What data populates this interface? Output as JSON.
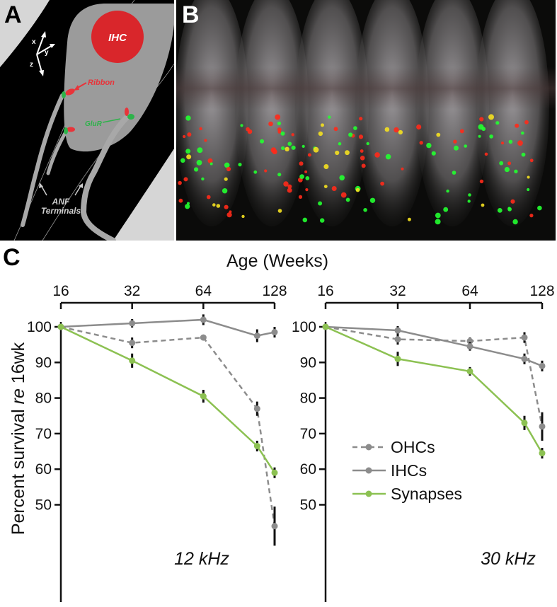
{
  "panel_a": {
    "letter": "A",
    "labels": {
      "ihc": "IHC",
      "ribbon": "Ribbon",
      "glur": "GluR",
      "anf_line1": "ANF",
      "anf_line2": "Terminals"
    },
    "axes": {
      "x": "x",
      "y": "y",
      "z": "z"
    },
    "colors": {
      "ihc": "#d9262b",
      "ribbon": "#e8343a",
      "glur": "#2db34a",
      "tissue": "#000000",
      "cell": "#9b9b9b"
    }
  },
  "panel_b": {
    "letter": "B",
    "colors": {
      "ribbon": "#ff2a1a",
      "glur": "#22ff30",
      "overlap": "#f4e020"
    }
  },
  "panel_c": {
    "letter": "C",
    "top_axis_title": "Age (Weeks)",
    "ylabel_prefix": "Percent survival ",
    "ylabel_italic": "re",
    "ylabel_suffix": " 16wk",
    "legend": [
      "OHCs",
      "IHCs",
      "Synapses"
    ]
  },
  "chart_data": [
    {
      "type": "line",
      "title": "12 kHz",
      "x_label": "Age (Weeks)",
      "x_ticks": [
        16,
        32,
        64,
        128
      ],
      "x_scale": "log2",
      "y_ticks": [
        50,
        60,
        70,
        80,
        90,
        100
      ],
      "ylim": [
        42,
        103
      ],
      "series": [
        {
          "name": "OHCs",
          "style": "dashed",
          "color": "#8c8c8c",
          "x": [
            16,
            32,
            64,
            108,
            128
          ],
          "y": [
            100,
            95.5,
            97,
            77,
            44
          ],
          "err": [
            0,
            1.5,
            0.5,
            2,
            5.5
          ]
        },
        {
          "name": "IHCs",
          "style": "solid",
          "color": "#8c8c8c",
          "x": [
            16,
            32,
            64,
            108,
            128
          ],
          "y": [
            100,
            101,
            102,
            97.5,
            98.5
          ],
          "err": [
            0,
            1.2,
            1.5,
            1.8,
            1.5
          ]
        },
        {
          "name": "Synapses",
          "style": "solid",
          "color": "#8cc152",
          "x": [
            16,
            32,
            64,
            108,
            128
          ],
          "y": [
            100,
            90.5,
            80.5,
            66.5,
            59
          ],
          "err": [
            0,
            2,
            1.8,
            1.5,
            1.5
          ]
        }
      ]
    },
    {
      "type": "line",
      "title": "30 kHz",
      "x_label": "Age (Weeks)",
      "x_ticks": [
        16,
        32,
        64,
        128
      ],
      "x_scale": "log2",
      "y_ticks": [
        50,
        60,
        70,
        80,
        90,
        100
      ],
      "ylim": [
        42,
        103
      ],
      "series": [
        {
          "name": "OHCs",
          "style": "dashed",
          "color": "#8c8c8c",
          "x": [
            16,
            32,
            64,
            108,
            128
          ],
          "y": [
            100,
            96.5,
            96,
            97,
            72
          ],
          "err": [
            0,
            1.5,
            1,
            1.5,
            4
          ]
        },
        {
          "name": "IHCs",
          "style": "solid",
          "color": "#8c8c8c",
          "x": [
            16,
            32,
            64,
            108,
            128
          ],
          "y": [
            100,
            99,
            94.5,
            91,
            89
          ],
          "err": [
            0,
            1.2,
            1.2,
            1.5,
            1.5
          ]
        },
        {
          "name": "Synapses",
          "style": "solid",
          "color": "#8cc152",
          "x": [
            16,
            32,
            64,
            108,
            128
          ],
          "y": [
            100,
            91,
            87.5,
            73,
            64.5
          ],
          "err": [
            0,
            2,
            1.2,
            2,
            1.5
          ]
        }
      ]
    }
  ]
}
